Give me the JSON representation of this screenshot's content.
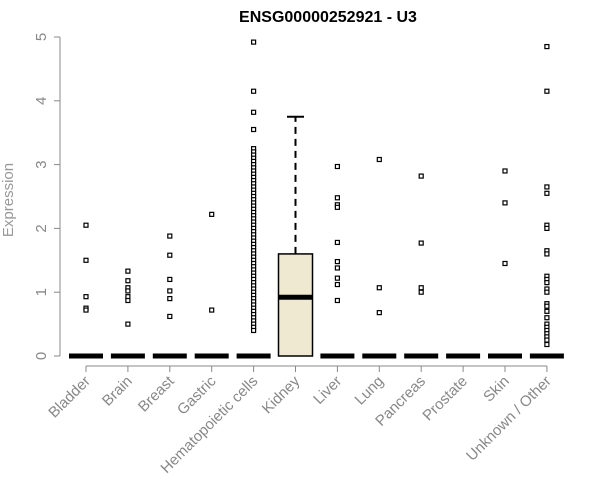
{
  "chart_data": {
    "type": "box",
    "title": "ENSG00000252921 - U3",
    "xlabel": "",
    "ylabel": "Expression",
    "ylim": [
      0,
      5
    ],
    "yticks": [
      0,
      1,
      2,
      3,
      4,
      5
    ],
    "grid": false,
    "legend": "none",
    "colors": {
      "box_fill": "#efe9d2",
      "stroke": "#000000",
      "axis_text": "#888888"
    },
    "categories": [
      "Bladder",
      "Brain",
      "Breast",
      "Gastric",
      "Hematopoietic cells",
      "Kidney",
      "Liver",
      "Lung",
      "Pancreas",
      "Prostate",
      "Skin",
      "Unknown / Other"
    ],
    "boxes": [
      {
        "category": "Bladder",
        "q1": 0,
        "median": 0,
        "q3": 0,
        "whisker_low": 0,
        "whisker_high": 0,
        "outliers": [
          2.05,
          1.5,
          0.93,
          0.75,
          0.72
        ]
      },
      {
        "category": "Brain",
        "q1": 0,
        "median": 0,
        "q3": 0,
        "whisker_low": 0,
        "whisker_high": 0,
        "outliers": [
          1.33,
          1.18,
          1.07,
          1.02,
          0.93,
          0.87,
          0.5
        ]
      },
      {
        "category": "Breast",
        "q1": 0,
        "median": 0,
        "q3": 0,
        "whisker_low": 0,
        "whisker_high": 0,
        "outliers": [
          1.88,
          1.58,
          1.2,
          1.02,
          0.9,
          0.62
        ]
      },
      {
        "category": "Gastric",
        "q1": 0,
        "median": 0,
        "q3": 0,
        "whisker_low": 0,
        "whisker_high": 0,
        "outliers": [
          2.22,
          0.72
        ]
      },
      {
        "category": "Hematopoietic cells",
        "q1": 0,
        "median": 0,
        "q3": 0,
        "whisker_low": 0,
        "whisker_high": 0,
        "outliers": [
          4.92,
          4.15,
          3.82,
          3.55,
          3.25,
          3.2,
          3.15,
          3.1,
          3.05,
          3.0,
          2.95,
          2.9,
          2.85,
          2.8,
          2.75,
          2.7,
          2.65,
          2.6,
          2.55,
          2.5,
          2.45,
          2.4,
          2.35,
          2.3,
          2.25,
          2.2,
          2.15,
          2.1,
          2.05,
          2.0,
          1.95,
          1.9,
          1.85,
          1.8,
          1.75,
          1.7,
          1.65,
          1.6,
          1.55,
          1.5,
          1.45,
          1.4,
          1.35,
          1.3,
          1.25,
          1.2,
          1.15,
          1.1,
          1.05,
          1.0,
          0.95,
          0.9,
          0.85,
          0.8,
          0.75,
          0.7,
          0.65,
          0.6,
          0.55,
          0.5,
          0.45,
          0.4
        ]
      },
      {
        "category": "Kidney",
        "q1": 0,
        "median": 0.92,
        "q3": 1.6,
        "whisker_low": 0,
        "whisker_high": 3.75,
        "outliers": []
      },
      {
        "category": "Liver",
        "q1": 0,
        "median": 0,
        "q3": 0,
        "whisker_low": 0,
        "whisker_high": 0,
        "outliers": [
          2.97,
          2.48,
          2.37,
          2.33,
          1.78,
          1.48,
          1.38,
          1.22,
          1.12,
          0.87
        ]
      },
      {
        "category": "Lung",
        "q1": 0,
        "median": 0,
        "q3": 0,
        "whisker_low": 0,
        "whisker_high": 0,
        "outliers": [
          3.08,
          1.07,
          0.68
        ]
      },
      {
        "category": "Pancreas",
        "q1": 0,
        "median": 0,
        "q3": 0,
        "whisker_low": 0,
        "whisker_high": 0,
        "outliers": [
          2.82,
          1.77,
          1.07,
          1.0
        ]
      },
      {
        "category": "Prostate",
        "q1": 0,
        "median": 0,
        "q3": 0,
        "whisker_low": 0,
        "whisker_high": 0,
        "outliers": []
      },
      {
        "category": "Skin",
        "q1": 0,
        "median": 0,
        "q3": 0,
        "whisker_low": 0,
        "whisker_high": 0,
        "outliers": [
          2.9,
          2.4,
          1.45
        ]
      },
      {
        "category": "Unknown / Other",
        "q1": 0,
        "median": 0,
        "q3": 0,
        "whisker_low": 0,
        "whisker_high": 0,
        "outliers": [
          4.85,
          4.15,
          2.65,
          2.55,
          2.05,
          2.0,
          1.65,
          1.6,
          1.25,
          1.2,
          1.15,
          1.05,
          1.0,
          0.82,
          0.78,
          0.7,
          0.6,
          0.5,
          0.45,
          0.4,
          0.35,
          0.3,
          0.25,
          0.18
        ]
      }
    ]
  }
}
